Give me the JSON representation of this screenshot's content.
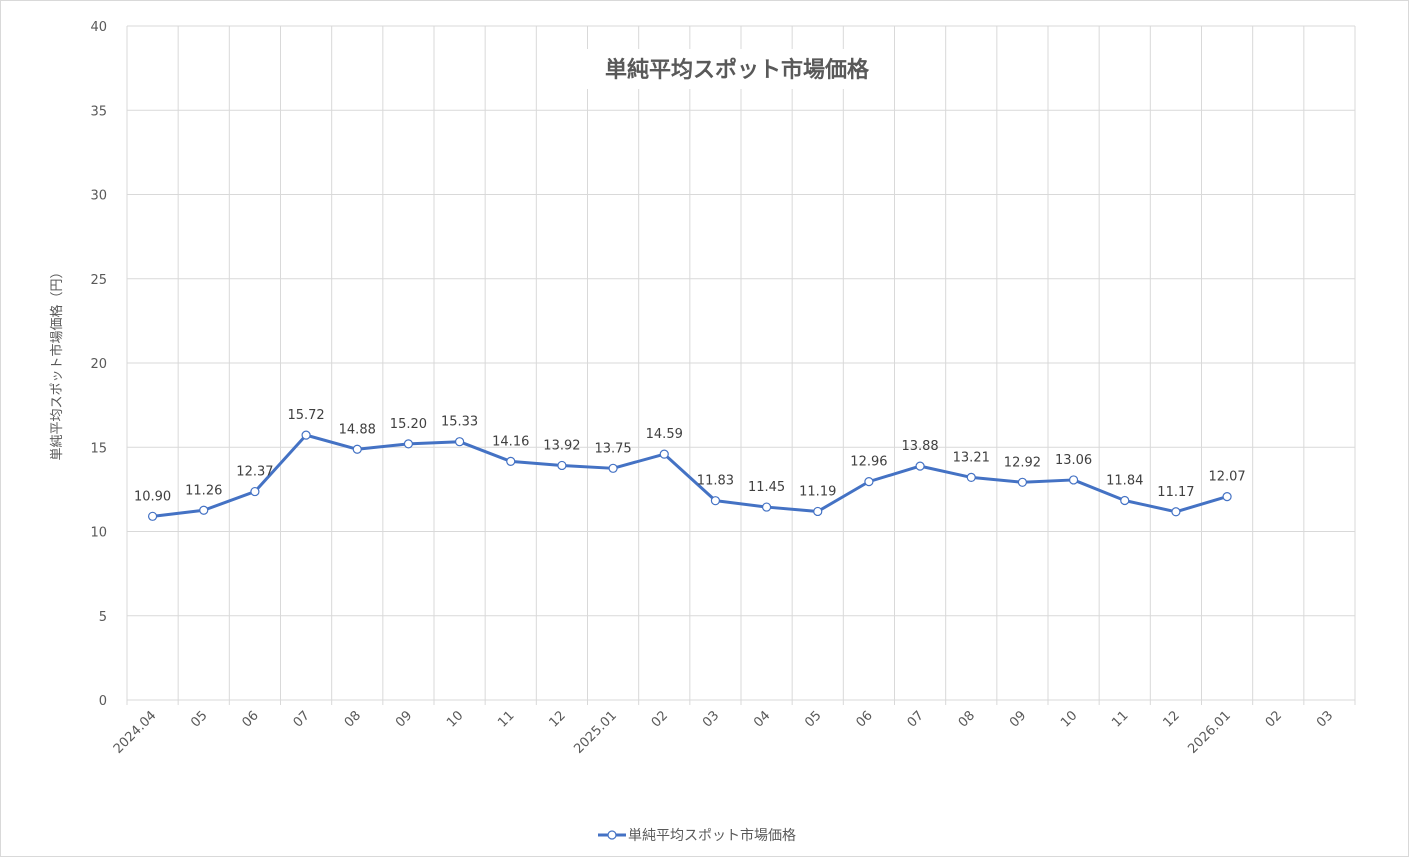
{
  "chart_data": {
    "type": "line",
    "title": "単純平均スポット市場価格",
    "xlabel": "",
    "ylabel": "単純平均スポット市場価格（円）",
    "ylim": [
      0,
      40
    ],
    "yticks": [
      0,
      5,
      10,
      15,
      20,
      25,
      30,
      35,
      40
    ],
    "grid": true,
    "legend_position": "bottom",
    "categories": [
      "2024.04",
      "05",
      "06",
      "07",
      "08",
      "09",
      "10",
      "11",
      "12",
      "2025.01",
      "02",
      "03",
      "04",
      "05",
      "06",
      "07",
      "08",
      "09",
      "10",
      "11",
      "12",
      "2026.01",
      "02",
      "03"
    ],
    "series": [
      {
        "name": "単純平均スポット市場価格",
        "color": "#4472c4",
        "marker": "circle-open",
        "values": [
          10.9,
          11.26,
          12.37,
          15.72,
          14.88,
          15.2,
          15.33,
          14.16,
          13.92,
          13.75,
          14.59,
          11.83,
          11.45,
          11.19,
          12.96,
          13.88,
          13.21,
          12.92,
          13.06,
          11.84,
          11.17,
          12.07,
          null,
          null
        ],
        "labels": [
          "10.90",
          "11.26",
          "12.37",
          "15.72",
          "14.88",
          "15.20",
          "15.33",
          "14.16",
          "13.92",
          "13.75",
          "14.59",
          "11.83",
          "11.45",
          "11.19",
          "12.96",
          "13.88",
          "13.21",
          "12.92",
          "13.06",
          "11.84",
          "11.17",
          "12.07"
        ]
      }
    ]
  },
  "colors": {
    "line": "#4472c4",
    "grid": "#d9d9d9",
    "text": "#595959",
    "label": "#404040"
  }
}
